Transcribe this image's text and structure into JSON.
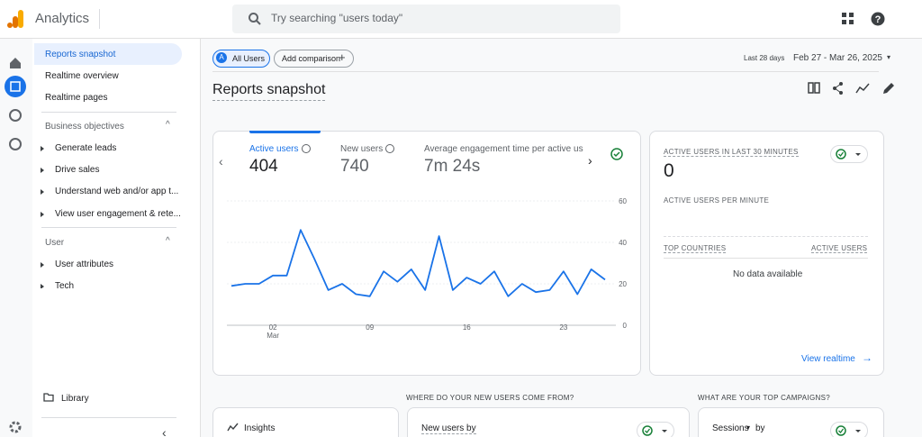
{
  "header": {
    "app": "Analytics",
    "search_placeholder": "Try searching \"users today\""
  },
  "nav": {
    "items": [
      "Reports snapshot",
      "Realtime overview",
      "Realtime pages"
    ],
    "sections": [
      {
        "title": "Business objectives",
        "items": [
          "Generate leads",
          "Drive sales",
          "Understand web and/or app t...",
          "View user engagement & rete..."
        ]
      },
      {
        "title": "User",
        "items": [
          "User attributes",
          "Tech"
        ]
      }
    ],
    "library": "Library"
  },
  "toolbar": {
    "segment_badge": "A",
    "segment": "All Users",
    "add_comparison": "Add comparison",
    "date_label": "Last 28 days",
    "date_range": "Feb 27 - Mar 26, 2025"
  },
  "page_title": "Reports snapshot",
  "metrics": [
    {
      "label": "Active users",
      "value": 404
    },
    {
      "label": "New users",
      "value": 740
    },
    {
      "label": "Average engagement time per active us",
      "value": "7m 24s"
    }
  ],
  "chart_data": {
    "type": "line",
    "color": "#1a73e8",
    "categories": [
      null,
      null,
      null,
      "02",
      null,
      null,
      null,
      null,
      null,
      null,
      "09",
      null,
      null,
      null,
      null,
      null,
      null,
      "16",
      null,
      null,
      null,
      null,
      null,
      null,
      "23",
      null,
      null,
      null
    ],
    "x_month": "Mar",
    "values": [
      19,
      20,
      20,
      24,
      24,
      46,
      32,
      17,
      20,
      15,
      14,
      26,
      21,
      27,
      17,
      43,
      17,
      23,
      20,
      26,
      14,
      20,
      16,
      17,
      26,
      15,
      27,
      22
    ],
    "ylim": [
      0,
      60
    ],
    "yticks": [
      0,
      20,
      40,
      60
    ],
    "grid": true
  },
  "realtime": {
    "title": "ACTIVE USERS IN LAST 30 MINUTES",
    "value": 0,
    "per_minute": "ACTIVE USERS PER MINUTE",
    "col1": "TOP COUNTRIES",
    "col2": "ACTIVE USERS",
    "empty": "No data available",
    "link": "View realtime"
  },
  "bottom": {
    "q1": "WHERE DO YOUR NEW USERS COME FROM?",
    "q2": "WHAT ARE YOUR TOP CAMPAIGNS?",
    "insights": "Insights",
    "card2": "New users by",
    "card3": "Sessions"
  }
}
